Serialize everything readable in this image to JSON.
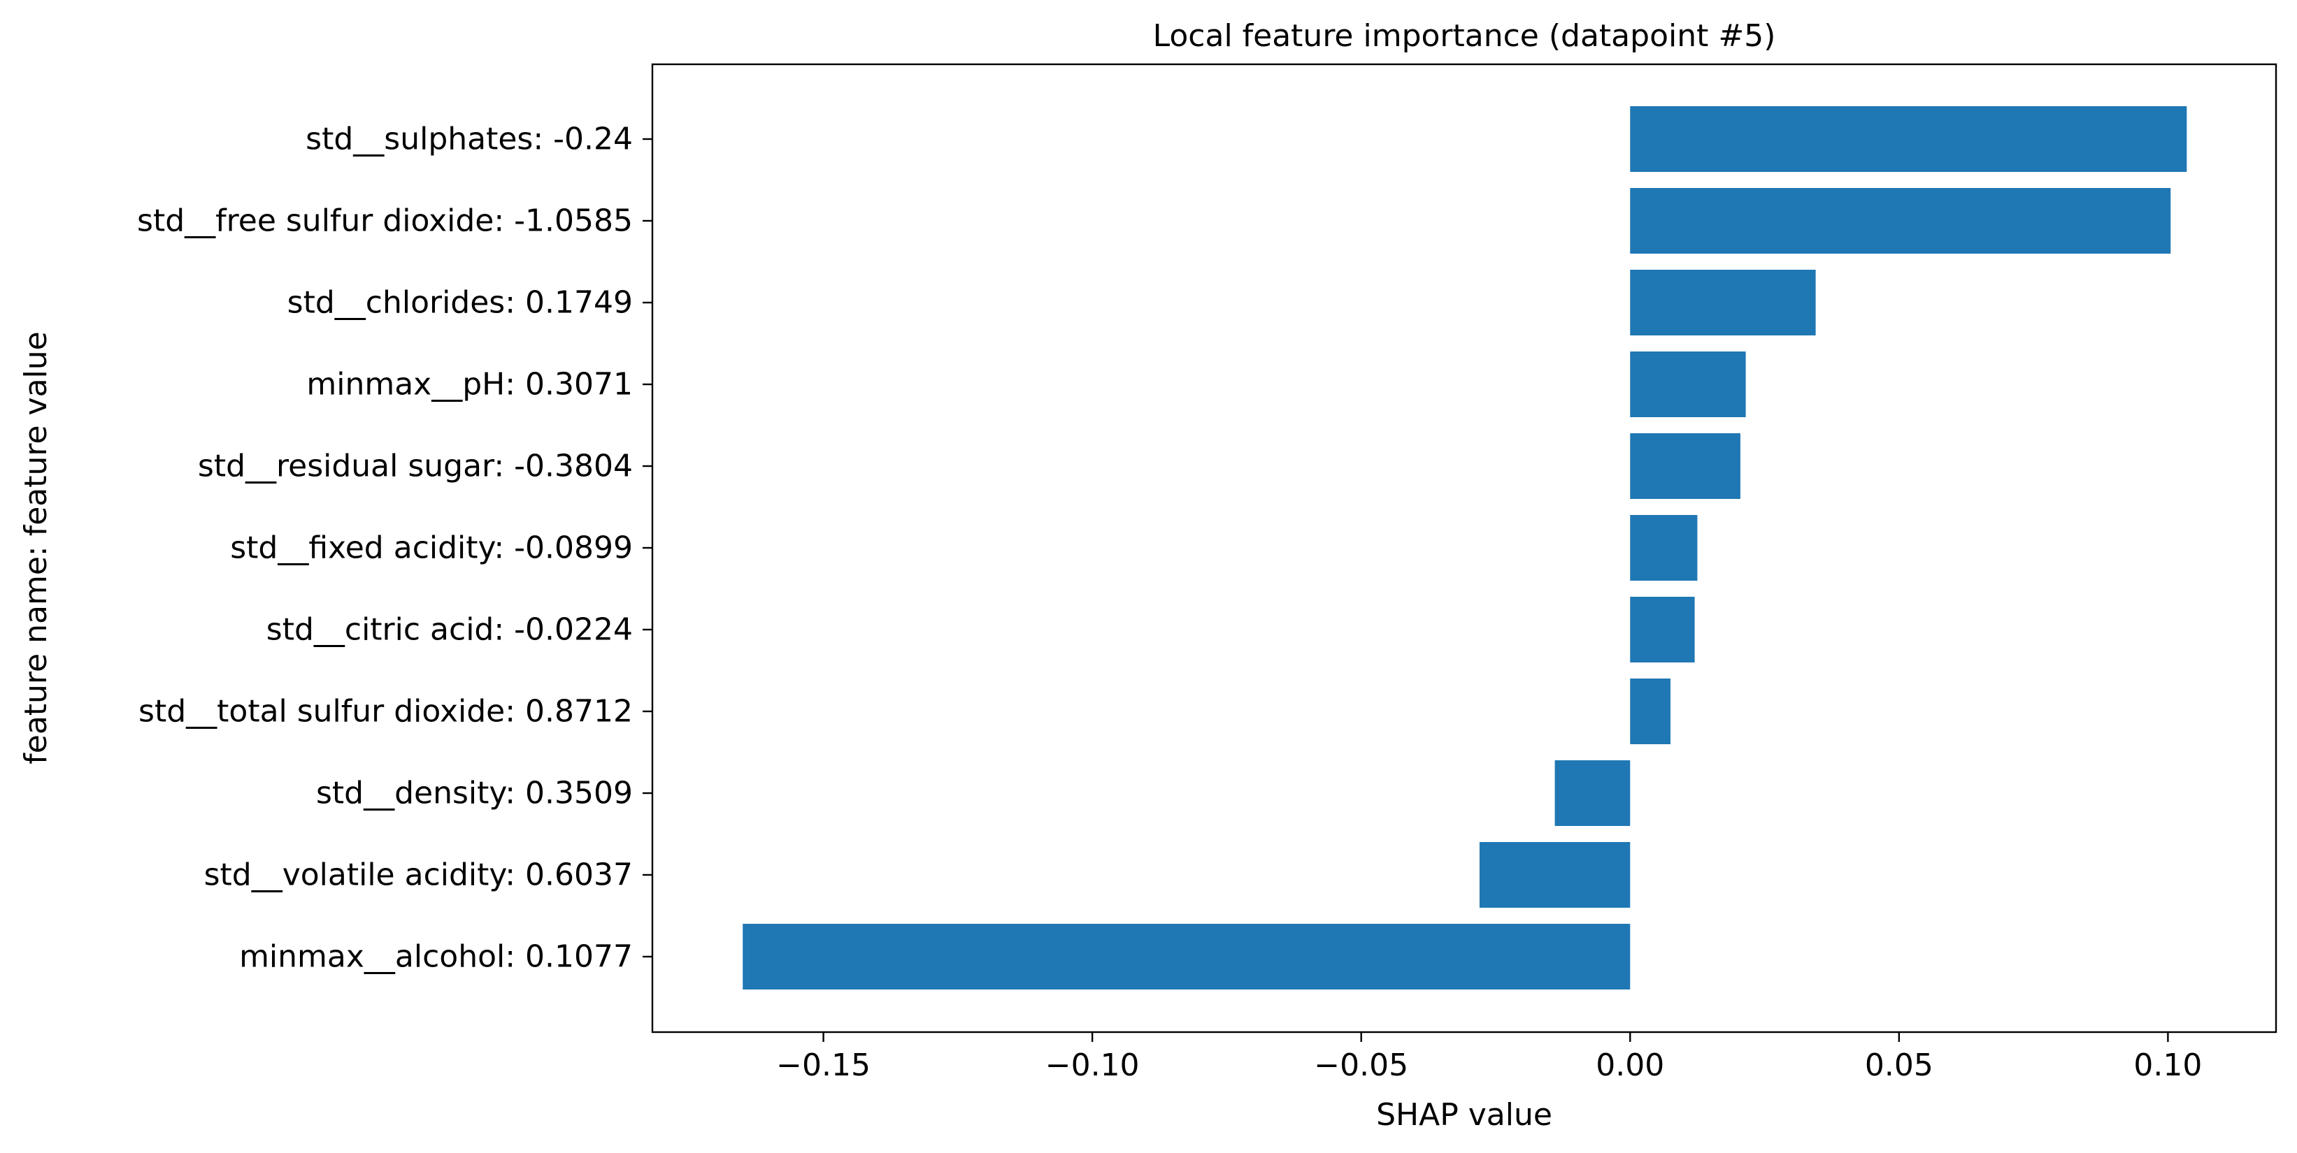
{
  "chart_data": {
    "type": "bar",
    "orientation": "horizontal",
    "title": "Local feature importance (datapoint #5)",
    "xlabel": "SHAP value",
    "ylabel": "feature name: feature value",
    "categories": [
      "std__sulphates: -0.24",
      "std__free sulfur dioxide: -1.0585",
      "std__chlorides: 0.1749",
      "minmax__pH: 0.3071",
      "std__residual sugar: -0.3804",
      "std__fixed acidity: -0.0899",
      "std__citric acid: -0.0224",
      "std__total sulfur dioxide: 0.8712",
      "std__density: 0.3509",
      "std__volatile acidity: 0.6037",
      "minmax__alcohol: 0.1077"
    ],
    "values": [
      0.1035,
      0.1005,
      0.0345,
      0.0215,
      0.0205,
      0.0125,
      0.012,
      0.0075,
      -0.014,
      -0.028,
      -0.165
    ],
    "xlim": [
      -0.1818,
      0.1201
    ],
    "xticks": [
      -0.15,
      -0.1,
      -0.05,
      0.0,
      0.05,
      0.1
    ],
    "xtick_labels": [
      "−0.15",
      "−0.10",
      "−0.05",
      "0.00",
      "0.05",
      "0.10"
    ],
    "grid": false,
    "legend": "none",
    "colors": {
      "bar": "#1f77b4",
      "axis": "#000000"
    }
  }
}
